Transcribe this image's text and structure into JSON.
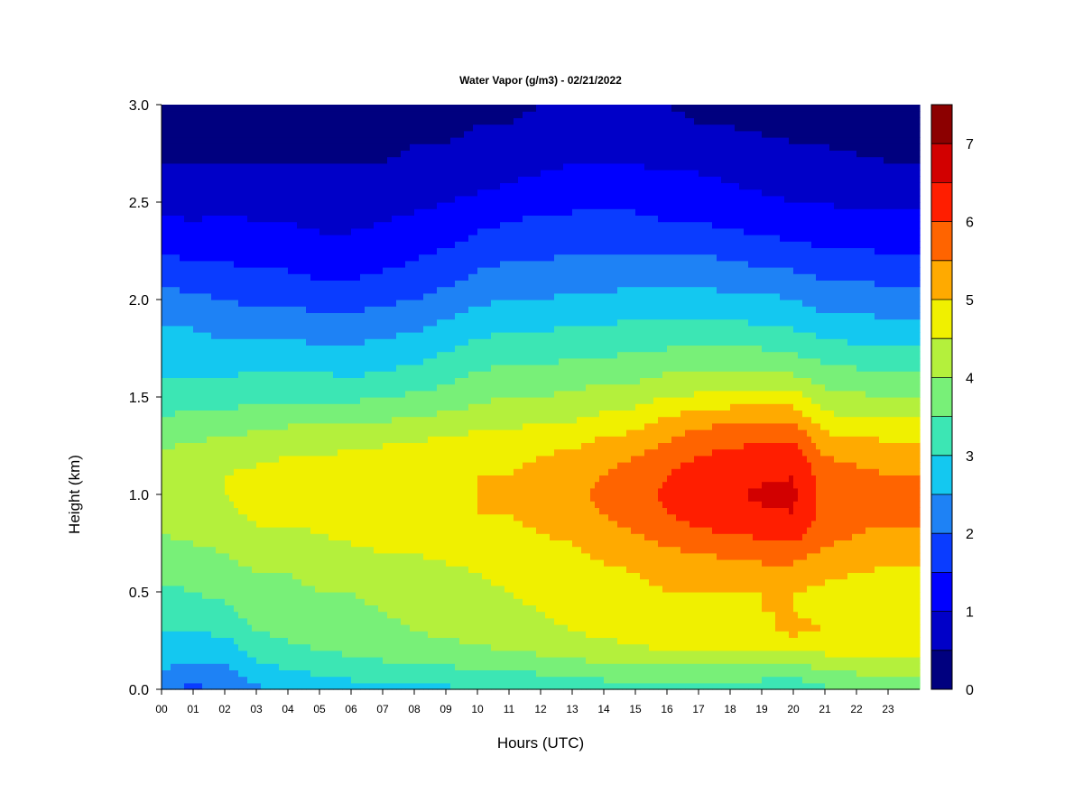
{
  "chart_data": {
    "type": "heatmap",
    "title": "Water Vapor (g/m3) - 02/21/2022",
    "xlabel": "Hours (UTC)",
    "ylabel": "Height (km)",
    "xlim": [
      0,
      24
    ],
    "ylim": [
      0,
      3.0
    ],
    "x_ticks": [
      "00",
      "01",
      "02",
      "03",
      "04",
      "05",
      "06",
      "07",
      "08",
      "09",
      "10",
      "11",
      "12",
      "13",
      "14",
      "15",
      "16",
      "17",
      "18",
      "19",
      "20",
      "21",
      "22",
      "23"
    ],
    "y_ticks": [
      "0.0",
      "0.5",
      "1.0",
      "1.5",
      "2.0",
      "2.5",
      "3.0"
    ],
    "colorbar": {
      "levels": [
        0,
        0.5,
        1,
        1.5,
        2,
        2.5,
        3,
        3.5,
        4,
        4.5,
        5,
        5.5,
        6,
        6.5,
        7,
        7.5
      ],
      "tick_labels": [
        "0",
        "1",
        "2",
        "3",
        "4",
        "5",
        "6",
        "7"
      ],
      "colors": [
        "#00007f",
        "#0000c8",
        "#0000ff",
        "#0a3cff",
        "#1e82f5",
        "#14c8f0",
        "#3ce6b4",
        "#78f078",
        "#b4f03c",
        "#f0f000",
        "#ffaa00",
        "#ff6400",
        "#ff1e00",
        "#d20000",
        "#8c0000"
      ]
    },
    "profiles": {
      "heights_km": [
        0.0,
        0.1,
        0.2,
        0.3,
        0.4,
        0.5,
        0.6,
        0.7,
        0.8,
        0.9,
        1.0,
        1.1,
        1.2,
        1.3,
        1.4,
        1.5,
        1.6,
        1.7,
        1.8,
        1.9,
        2.0,
        2.1,
        2.2,
        2.3,
        2.4,
        2.5,
        2.6,
        2.7,
        2.8,
        2.9,
        3.0
      ],
      "columns": [
        {
          "hour": 0,
          "values": [
            2.0,
            2.5,
            2.8,
            3.0,
            3.2,
            3.4,
            3.6,
            3.8,
            4.0,
            4.2,
            4.3,
            4.3,
            4.1,
            3.8,
            3.5,
            3.3,
            3.0,
            2.8,
            2.6,
            2.4,
            2.2,
            1.9,
            1.6,
            1.3,
            1.1,
            0.9,
            0.7,
            0.5,
            0.4,
            0.3,
            0.2
          ]
        },
        {
          "hour": 1,
          "values": [
            1.9,
            2.3,
            2.7,
            3.0,
            3.3,
            3.5,
            3.7,
            3.9,
            4.1,
            4.3,
            4.4,
            4.4,
            4.2,
            3.9,
            3.6,
            3.3,
            3.0,
            2.8,
            2.6,
            2.4,
            2.1,
            1.8,
            1.5,
            1.2,
            1.0,
            0.8,
            0.6,
            0.5,
            0.4,
            0.3,
            0.2
          ]
        },
        {
          "hour": 2,
          "values": [
            2.0,
            2.4,
            2.7,
            3.1,
            3.4,
            3.6,
            3.8,
            4.0,
            4.2,
            4.4,
            4.5,
            4.5,
            4.3,
            4.0,
            3.6,
            3.3,
            3.0,
            2.8,
            2.5,
            2.2,
            2.0,
            1.7,
            1.5,
            1.3,
            1.1,
            0.9,
            0.7,
            0.5,
            0.4,
            0.3,
            0.2
          ]
        },
        {
          "hour": 3,
          "values": [
            2.4,
            2.8,
            3.2,
            3.5,
            3.7,
            3.8,
            4.0,
            4.2,
            4.4,
            4.6,
            4.6,
            4.6,
            4.4,
            4.1,
            3.7,
            3.4,
            3.1,
            2.8,
            2.5,
            2.2,
            1.9,
            1.6,
            1.4,
            1.2,
            1.0,
            0.8,
            0.6,
            0.5,
            0.4,
            0.3,
            0.2
          ]
        },
        {
          "hour": 4,
          "values": [
            2.6,
            3.0,
            3.4,
            3.6,
            3.8,
            3.9,
            4.0,
            4.2,
            4.4,
            4.6,
            4.7,
            4.7,
            4.5,
            4.2,
            3.8,
            3.4,
            3.1,
            2.8,
            2.5,
            2.2,
            1.9,
            1.6,
            1.4,
            1.2,
            1.0,
            0.8,
            0.6,
            0.5,
            0.4,
            0.3,
            0.2
          ]
        },
        {
          "hour": 5,
          "values": [
            2.7,
            3.1,
            3.5,
            3.7,
            3.9,
            4.0,
            4.1,
            4.3,
            4.5,
            4.7,
            4.8,
            4.7,
            4.5,
            4.2,
            3.8,
            3.4,
            3.1,
            2.7,
            2.4,
            2.1,
            1.8,
            1.5,
            1.3,
            1.1,
            0.9,
            0.7,
            0.6,
            0.5,
            0.4,
            0.3,
            0.2
          ]
        },
        {
          "hour": 6,
          "values": [
            2.8,
            3.2,
            3.6,
            3.8,
            3.9,
            4.0,
            4.2,
            4.4,
            4.6,
            4.8,
            4.8,
            4.8,
            4.6,
            4.2,
            3.8,
            3.4,
            3.0,
            2.7,
            2.4,
            2.1,
            1.8,
            1.5,
            1.3,
            1.1,
            0.9,
            0.7,
            0.6,
            0.5,
            0.4,
            0.3,
            0.2
          ]
        },
        {
          "hour": 7,
          "values": [
            2.8,
            3.3,
            3.7,
            3.9,
            4.0,
            4.1,
            4.3,
            4.5,
            4.7,
            4.9,
            4.9,
            4.9,
            4.7,
            4.3,
            3.9,
            3.5,
            3.1,
            2.8,
            2.5,
            2.2,
            1.9,
            1.6,
            1.4,
            1.2,
            1.0,
            0.8,
            0.6,
            0.5,
            0.4,
            0.3,
            0.2
          ]
        },
        {
          "hour": 8,
          "values": [
            2.9,
            3.3,
            3.8,
            4.0,
            4.1,
            4.2,
            4.3,
            4.5,
            4.7,
            4.9,
            4.9,
            4.9,
            4.7,
            4.4,
            4.0,
            3.6,
            3.2,
            2.9,
            2.6,
            2.3,
            2.0,
            1.7,
            1.5,
            1.3,
            1.1,
            0.9,
            0.7,
            0.6,
            0.5,
            0.4,
            0.3
          ]
        },
        {
          "hour": 9,
          "values": [
            2.9,
            3.4,
            3.8,
            4.1,
            4.2,
            4.3,
            4.4,
            4.6,
            4.8,
            4.9,
            5.0,
            4.9,
            4.8,
            4.5,
            4.1,
            3.7,
            3.4,
            3.1,
            2.8,
            2.5,
            2.2,
            1.9,
            1.7,
            1.4,
            1.2,
            1.0,
            0.8,
            0.7,
            0.5,
            0.4,
            0.3
          ]
        },
        {
          "hour": 10,
          "values": [
            3.0,
            3.5,
            3.9,
            4.2,
            4.3,
            4.4,
            4.5,
            4.7,
            4.9,
            5.0,
            5.0,
            5.0,
            4.9,
            4.6,
            4.2,
            3.9,
            3.6,
            3.3,
            3.0,
            2.7,
            2.4,
            2.1,
            1.9,
            1.6,
            1.4,
            1.1,
            0.9,
            0.8,
            0.6,
            0.5,
            0.4
          ]
        },
        {
          "hour": 11,
          "values": [
            3.0,
            3.5,
            4.0,
            4.3,
            4.4,
            4.5,
            4.6,
            4.7,
            4.9,
            5.0,
            5.0,
            5.0,
            4.9,
            4.6,
            4.3,
            4.0,
            3.7,
            3.4,
            3.1,
            2.8,
            2.5,
            2.2,
            2.0,
            1.7,
            1.5,
            1.2,
            1.0,
            0.8,
            0.7,
            0.5,
            0.4
          ]
        },
        {
          "hour": 12,
          "values": [
            3.1,
            3.6,
            4.1,
            4.4,
            4.5,
            4.6,
            4.7,
            4.8,
            5.0,
            5.1,
            5.1,
            5.1,
            5.0,
            4.7,
            4.4,
            4.0,
            3.7,
            3.4,
            3.1,
            2.8,
            2.5,
            2.3,
            2.0,
            1.8,
            1.6,
            1.3,
            1.1,
            0.9,
            0.7,
            0.6,
            0.5
          ]
        },
        {
          "hour": 13,
          "values": [
            3.1,
            3.7,
            4.2,
            4.5,
            4.6,
            4.7,
            4.8,
            4.9,
            5.1,
            5.3,
            5.4,
            5.3,
            5.1,
            4.8,
            4.4,
            4.1,
            3.8,
            3.5,
            3.2,
            2.9,
            2.6,
            2.3,
            2.1,
            1.8,
            1.6,
            1.4,
            1.2,
            1.0,
            0.8,
            0.6,
            0.5
          ]
        },
        {
          "hour": 14,
          "values": [
            3.2,
            3.8,
            4.3,
            4.6,
            4.7,
            4.8,
            4.9,
            5.1,
            5.3,
            5.5,
            5.6,
            5.5,
            5.3,
            5.0,
            4.6,
            4.2,
            3.9,
            3.5,
            3.2,
            2.9,
            2.6,
            2.3,
            2.1,
            1.8,
            1.6,
            1.4,
            1.2,
            1.0,
            0.8,
            0.6,
            0.5
          ]
        },
        {
          "hour": 15,
          "values": [
            3.2,
            3.8,
            4.4,
            4.7,
            4.8,
            4.9,
            5.0,
            5.2,
            5.5,
            5.7,
            5.8,
            5.7,
            5.5,
            5.1,
            4.7,
            4.3,
            3.9,
            3.6,
            3.3,
            3.0,
            2.7,
            2.4,
            2.1,
            1.8,
            1.6,
            1.4,
            1.2,
            1.0,
            0.8,
            0.6,
            0.5
          ]
        },
        {
          "hour": 16,
          "values": [
            3.2,
            3.8,
            4.5,
            4.8,
            4.9,
            5.0,
            5.1,
            5.4,
            5.7,
            6.0,
            6.1,
            6.0,
            5.8,
            5.4,
            5.0,
            4.5,
            4.1,
            3.7,
            3.3,
            3.0,
            2.7,
            2.4,
            2.1,
            1.8,
            1.5,
            1.3,
            1.1,
            0.9,
            0.7,
            0.6,
            0.5
          ]
        },
        {
          "hour": 17,
          "values": [
            3.2,
            3.8,
            4.5,
            4.8,
            4.9,
            5.0,
            5.2,
            5.5,
            5.9,
            6.2,
            6.3,
            6.2,
            6.0,
            5.7,
            5.2,
            4.6,
            4.1,
            3.7,
            3.3,
            3.0,
            2.7,
            2.4,
            2.1,
            1.8,
            1.5,
            1.3,
            1.1,
            0.9,
            0.7,
            0.5,
            0.4
          ]
        },
        {
          "hour": 18,
          "values": [
            3.2,
            3.8,
            4.5,
            4.8,
            4.9,
            5.0,
            5.2,
            5.6,
            6.0,
            6.3,
            6.4,
            6.3,
            6.1,
            5.8,
            5.3,
            4.7,
            4.1,
            3.7,
            3.3,
            3.0,
            2.6,
            2.3,
            2.0,
            1.7,
            1.4,
            1.2,
            1.0,
            0.8,
            0.6,
            0.5,
            0.4
          ]
        },
        {
          "hour": 19,
          "values": [
            3.2,
            3.8,
            4.5,
            4.9,
            5.0,
            5.0,
            5.3,
            5.7,
            6.1,
            6.4,
            6.6,
            6.4,
            6.2,
            5.9,
            5.4,
            4.8,
            4.2,
            3.7,
            3.3,
            2.9,
            2.6,
            2.3,
            1.9,
            1.6,
            1.3,
            1.1,
            0.9,
            0.7,
            0.6,
            0.4,
            0.3
          ]
        },
        {
          "hour": 20,
          "values": [
            3.1,
            3.7,
            4.6,
            5.1,
            5.0,
            5.0,
            5.3,
            5.7,
            6.2,
            6.5,
            6.6,
            6.5,
            6.3,
            5.9,
            5.3,
            4.7,
            4.1,
            3.6,
            3.2,
            2.8,
            2.5,
            2.2,
            1.8,
            1.5,
            1.2,
            1.0,
            0.8,
            0.6,
            0.5,
            0.4,
            0.3
          ]
        },
        {
          "hour": 21,
          "values": [
            3.4,
            4.0,
            4.6,
            5.0,
            4.9,
            4.9,
            5.1,
            5.4,
            5.7,
            5.8,
            5.8,
            5.7,
            5.5,
            5.1,
            4.6,
            4.2,
            3.8,
            3.4,
            3.0,
            2.6,
            2.3,
            2.0,
            1.7,
            1.4,
            1.2,
            1.0,
            0.8,
            0.6,
            0.5,
            0.4,
            0.3
          ]
        },
        {
          "hour": 22,
          "values": [
            3.5,
            4.1,
            4.7,
            5.0,
            4.9,
            4.8,
            5.0,
            5.3,
            5.5,
            5.7,
            5.7,
            5.6,
            5.4,
            5.0,
            4.5,
            4.1,
            3.7,
            3.3,
            2.9,
            2.6,
            2.3,
            2.0,
            1.7,
            1.4,
            1.1,
            0.9,
            0.7,
            0.6,
            0.4,
            0.3,
            0.2
          ]
        },
        {
          "hour": 23,
          "values": [
            3.6,
            4.2,
            4.7,
            5.0,
            4.9,
            4.8,
            4.9,
            5.2,
            5.4,
            5.6,
            5.6,
            5.5,
            5.3,
            4.9,
            4.5,
            4.0,
            3.6,
            3.2,
            2.9,
            2.5,
            2.2,
            1.9,
            1.6,
            1.3,
            1.1,
            0.9,
            0.7,
            0.5,
            0.4,
            0.3,
            0.2
          ]
        },
        {
          "hour": 24,
          "values": [
            3.6,
            4.2,
            4.7,
            5.0,
            4.9,
            4.8,
            4.9,
            5.2,
            5.4,
            5.6,
            5.6,
            5.5,
            5.3,
            4.9,
            4.5,
            4.0,
            3.6,
            3.2,
            2.9,
            2.5,
            2.2,
            1.9,
            1.6,
            1.3,
            1.1,
            0.9,
            0.7,
            0.5,
            0.4,
            0.3,
            0.2
          ]
        }
      ]
    }
  }
}
